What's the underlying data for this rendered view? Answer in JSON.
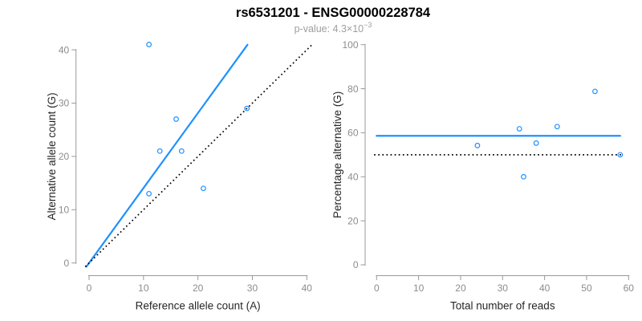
{
  "header": {
    "title": "rs6531201 - ENSG00000228784",
    "subtitle_prefix": "p-value: 4.3×10",
    "subtitle_exponent": "−3"
  },
  "colors": {
    "accent_blue": "#1E90FF",
    "dotted_black": "#000000",
    "axis_line_gray": "#999999",
    "tick_label_gray": "#8c8c8c",
    "axis_title_color": "#262626"
  },
  "chart_data": [
    {
      "type": "scatter",
      "panel": "allele-counts",
      "xlabel": "Reference allele count (A)",
      "ylabel": "Alternative allele count (G)",
      "xlim": [
        0,
        40
      ],
      "ylim": [
        0,
        41
      ],
      "xticks": [
        0,
        10,
        20,
        30,
        40
      ],
      "yticks": [
        0,
        10,
        20,
        30,
        40
      ],
      "grid": false,
      "legend": "none",
      "points": [
        [
          11,
          41
        ],
        [
          13,
          21
        ],
        [
          16,
          27
        ],
        [
          11,
          13
        ],
        [
          17,
          21
        ],
        [
          21,
          14
        ],
        [
          29,
          29
        ]
      ],
      "lines": [
        {
          "name": "fit-line",
          "style": "solid",
          "color": "#1E90FF",
          "from": {
            "x": -0.5,
            "y": -0.7
          },
          "to": {
            "x": 29.1,
            "y": 40.95
          }
        },
        {
          "name": "identity-line",
          "style": "dotted",
          "color": "#000000",
          "from": {
            "x": -0.7,
            "y": -0.7
          },
          "to": {
            "x": 40.9,
            "y": 40.9
          }
        }
      ]
    },
    {
      "type": "scatter",
      "panel": "percentage-alternative",
      "xlabel": "Total number of reads",
      "ylabel": "Percentage alternative (G)",
      "xlim": [
        0,
        60
      ],
      "ylim": [
        0,
        100
      ],
      "xticks": [
        0,
        10,
        20,
        30,
        40,
        50,
        60
      ],
      "yticks": [
        0,
        20,
        40,
        60,
        80,
        100
      ],
      "grid": false,
      "legend": "none",
      "points": [
        [
          52,
          78.8
        ],
        [
          34,
          61.8
        ],
        [
          43,
          62.8
        ],
        [
          24,
          54.2
        ],
        [
          38,
          55.3
        ],
        [
          35,
          40
        ],
        [
          58,
          50
        ]
      ],
      "lines": [
        {
          "name": "mean-percentage-line",
          "style": "solid",
          "color": "#1E90FF",
          "from": {
            "x": 0,
            "y": 58.6
          },
          "to": {
            "x": 58,
            "y": 58.6
          }
        },
        {
          "name": "fifty-percent-line",
          "style": "dotted",
          "color": "#000000",
          "from": {
            "x": -0.6,
            "y": 50
          },
          "to": {
            "x": 58.3,
            "y": 50
          }
        }
      ]
    }
  ]
}
